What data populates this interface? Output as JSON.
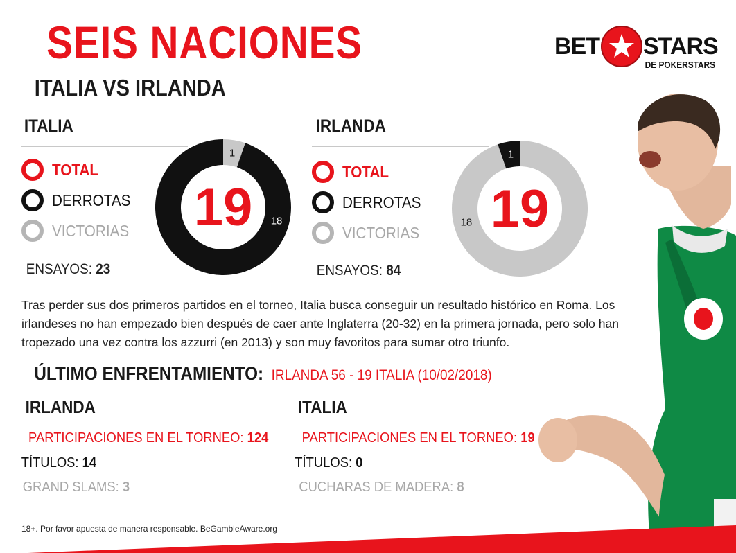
{
  "header": {
    "title": "SEIS NACIONES",
    "subtitle": "ITALIA VS IRLANDA"
  },
  "brand": {
    "word_left": "BET",
    "word_right": "STARS",
    "tagline": "DE POKERSTARS",
    "accent_color": "#e8141c"
  },
  "teams_summary": [
    {
      "name": "ITALIA",
      "legend": {
        "total": "TOTAL",
        "derrotas": "DERROTAS",
        "victorias": "VICTORIAS"
      },
      "total": "19",
      "derrotas": 18,
      "victorias": 1,
      "derrotas_label": "18",
      "victorias_label": "1",
      "ensayos_label": "ENSAYOS:",
      "ensayos_value": "23"
    },
    {
      "name": "IRLANDA",
      "legend": {
        "total": "TOTAL",
        "derrotas": "DERROTAS",
        "victorias": "VICTORIAS"
      },
      "total": "19",
      "derrotas": 1,
      "victorias": 18,
      "derrotas_label": "1",
      "victorias_label": "18",
      "ensayos_label": "ENSAYOS:",
      "ensayos_value": "84"
    }
  ],
  "chart_data": [
    {
      "type": "pie",
      "title": "",
      "categories": [
        "DERROTAS",
        "VICTORIAS"
      ],
      "values": [
        18,
        1
      ],
      "total": 19,
      "colors": [
        "#111111",
        "#c8c8c8"
      ]
    },
    {
      "type": "pie",
      "title": "",
      "categories": [
        "DERROTAS",
        "VICTORIAS"
      ],
      "values": [
        1,
        18
      ],
      "total": 19,
      "colors": [
        "#111111",
        "#c8c8c8"
      ]
    }
  ],
  "description": "Tras perder sus dos primeros partidos en el torneo, Italia busca conseguir un resultado histórico en Roma. Los irlandeses no han empezado bien después de caer ante Inglaterra (20-32) en la primera jornada, pero solo han tropezado una vez contra los azzurri (en 2013) y son muy favoritos para sumar otro triunfo.",
  "last_match": {
    "label": "ÚLTIMO ENFRENTAMIENTO:",
    "value": "IRLANDA 56 - 19 ITALIA (10/02/2018)"
  },
  "stats": [
    {
      "name": "IRLANDA",
      "participaciones_label": "PARTICIPACIONES EN EL TORNEO:",
      "participaciones_value": "124",
      "titulos_label": "TÍTULOS:",
      "titulos_value": "14",
      "extra_label": "GRAND SLAMS:",
      "extra_value": "3"
    },
    {
      "name": "ITALIA",
      "participaciones_label": "PARTICIPACIONES EN EL TORNEO:",
      "participaciones_value": "19",
      "titulos_label": "TÍTULOS:",
      "titulos_value": "0",
      "extra_label": "CUCHARAS DE MADERA:",
      "extra_value": "8"
    }
  ],
  "footer": "18+. Por favor apuesta de manera responsable. BeGambleAware.org",
  "photo": {
    "icon": "rugby-player-celebrating",
    "shirt_color": "#0f8a45"
  }
}
